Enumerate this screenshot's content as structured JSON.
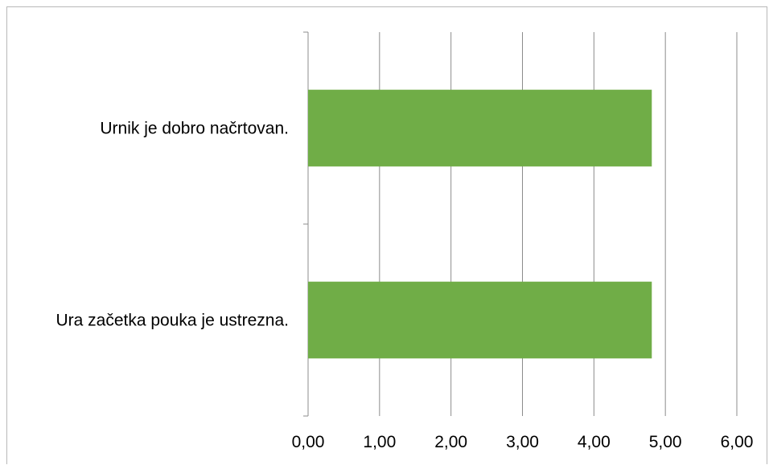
{
  "chart_data": {
    "type": "bar",
    "orientation": "horizontal",
    "categories": [
      "Urnik je dobro načrtovan.",
      "Ura začetka pouka je ustrezna."
    ],
    "values": [
      4.81,
      4.81
    ],
    "bar_color": "#70ad47",
    "xlim": [
      0,
      6
    ],
    "x_ticks": [
      0,
      1,
      2,
      3,
      4,
      5,
      6
    ],
    "x_tick_labels": [
      "0,00",
      "1,00",
      "2,00",
      "3,00",
      "4,00",
      "5,00",
      "6,00"
    ],
    "gridlines": "vertical major",
    "legend": "none"
  }
}
